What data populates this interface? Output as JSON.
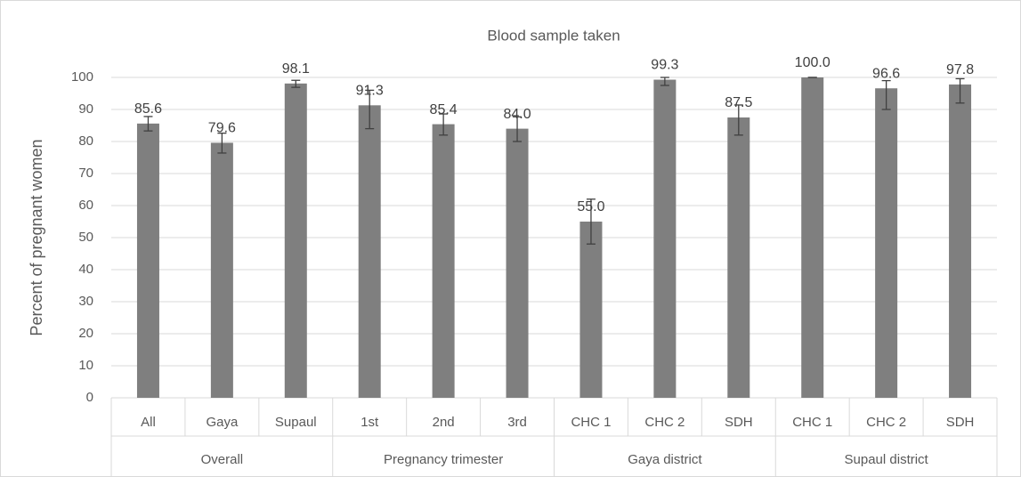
{
  "chart_data": {
    "type": "bar",
    "title": "Blood sample taken",
    "y_label": "Percent of pregnant women",
    "categories": [
      "All",
      "Gaya",
      "Supaul",
      "1st",
      "2nd",
      "3rd",
      "CHC 1",
      "CHC 2",
      "SDH",
      "CHC 1",
      "CHC 2",
      "SDH"
    ],
    "groups": [
      "Overall",
      "Pregnancy trimester",
      "Gaya district",
      "Supaul district"
    ],
    "values": [
      85.6,
      79.6,
      98.1,
      91.3,
      85.4,
      84.0,
      55.0,
      99.3,
      87.5,
      100.0,
      96.6,
      97.8
    ],
    "value_labels": [
      "85.6",
      "79.6",
      "98.1",
      "91.3",
      "85.4",
      "84.0",
      "55.0",
      "99.3",
      "87.5",
      "100.0",
      "96.6",
      "97.8"
    ],
    "ci_low": [
      83.3,
      76.4,
      96.9,
      84,
      82,
      80,
      48,
      97.5,
      82,
      100,
      90,
      92
    ],
    "ci_high": [
      87.8,
      82.6,
      99.1,
      96,
      88.6,
      87.7,
      62,
      100,
      91.4,
      100,
      99,
      99.6
    ],
    "color": "#7f7f7f",
    "error_color": "#404040",
    "ylim": [
      0,
      100
    ],
    "yticks": [
      0,
      10,
      20,
      30,
      40,
      50,
      60,
      70,
      80,
      90,
      100
    ],
    "grid": true
  }
}
